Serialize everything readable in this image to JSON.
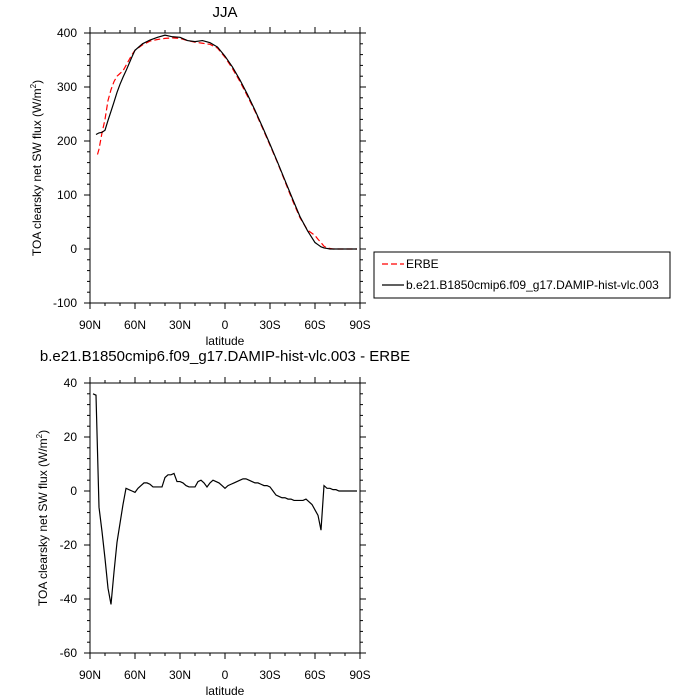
{
  "chart_data": [
    {
      "type": "line",
      "title": "JJA",
      "xlabel": "latitude",
      "ylabel": "TOA clearsky net SW flux (W/m",
      "ylabel_sup": "2",
      "ylabel_end": ")",
      "xlim": [
        90,
        -90
      ],
      "ylim": [
        -100,
        400
      ],
      "x_ticks": [
        90,
        60,
        30,
        0,
        -30,
        -60,
        -90
      ],
      "x_tick_labels": [
        "90N",
        "60N",
        "30N",
        "0",
        "30S",
        "60S",
        "90S"
      ],
      "y_ticks": [
        -100,
        0,
        100,
        200,
        300,
        400
      ],
      "y_tick_labels": [
        "-100",
        "0",
        "100",
        "200",
        "300",
        "400"
      ],
      "legend_position": "right",
      "series": [
        {
          "name": "ERBE",
          "color": "#ff0000",
          "dash": "dashed",
          "x": [
            85,
            84,
            82,
            80,
            78,
            76,
            74,
            72,
            70,
            68,
            66,
            64,
            62,
            60,
            55,
            50,
            45,
            40,
            35,
            30,
            25,
            20,
            15,
            10,
            5,
            0,
            -5,
            -10,
            -15,
            -20,
            -25,
            -30,
            -35,
            -40,
            -45,
            -50,
            -55,
            -60,
            -62,
            -64,
            -66,
            -68,
            -70,
            -72,
            -75,
            -80,
            -85,
            -88
          ],
          "y": [
            175,
            185,
            215,
            240,
            275,
            295,
            310,
            320,
            325,
            330,
            340,
            350,
            360,
            368,
            378,
            385,
            388,
            390,
            391,
            390,
            386,
            383,
            381,
            379,
            372,
            355,
            334,
            310,
            283,
            255,
            224,
            192,
            160,
            125,
            90,
            58,
            35,
            25,
            18,
            12,
            5,
            2,
            1,
            0,
            0,
            0,
            0,
            0
          ]
        },
        {
          "name": "b.e21.B1850cmip6.f09_g17.DAMIP-hist-vlc.003",
          "color": "#000000",
          "dash": "solid",
          "x": [
            86,
            84,
            82,
            80,
            78,
            76,
            74,
            72,
            70,
            68,
            66,
            64,
            62,
            60,
            55,
            50,
            45,
            40,
            35,
            30,
            25,
            20,
            15,
            10,
            5,
            0,
            -5,
            -10,
            -15,
            -20,
            -25,
            -30,
            -35,
            -40,
            -45,
            -50,
            -55,
            -60,
            -62,
            -64,
            -66,
            -68,
            -70,
            -72,
            -75,
            -80,
            -85,
            -88
          ],
          "y": [
            212,
            215,
            216,
            220,
            238,
            255,
            272,
            290,
            305,
            318,
            330,
            343,
            356,
            368,
            380,
            387,
            392,
            396,
            393,
            392,
            386,
            384,
            386,
            382,
            374,
            357,
            337,
            313,
            286,
            257,
            226,
            194,
            161,
            127,
            93,
            60,
            34,
            12,
            8,
            4,
            2,
            1,
            0,
            0,
            0,
            0,
            0,
            0
          ]
        }
      ]
    },
    {
      "type": "line",
      "title": "b.e21.B1850cmip6.f09_g17.DAMIP-hist-vlc.003 - ERBE",
      "xlabel": "latitude",
      "ylabel": "TOA clearsky net SW flux (W/m",
      "ylabel_sup": "2",
      "ylabel_end": ")",
      "xlim": [
        90,
        -90
      ],
      "ylim": [
        -60,
        40
      ],
      "x_ticks": [
        90,
        60,
        30,
        0,
        -30,
        -60,
        -90
      ],
      "x_tick_labels": [
        "90N",
        "60N",
        "30N",
        "0",
        "30S",
        "60S",
        "90S"
      ],
      "y_ticks": [
        -60,
        -40,
        -20,
        0,
        20,
        40
      ],
      "y_tick_labels": [
        "-60",
        "-40",
        "-20",
        "0",
        "20",
        "40"
      ],
      "series": [
        {
          "color": "#000000",
          "dash": "solid",
          "x": [
            88,
            86,
            84,
            82,
            80,
            78,
            76,
            74,
            72,
            70,
            68,
            66,
            64,
            62,
            60,
            58,
            56,
            54,
            52,
            50,
            48,
            46,
            44,
            42,
            40,
            38,
            36,
            34,
            32,
            30,
            28,
            26,
            24,
            22,
            20,
            18,
            16,
            14,
            12,
            10,
            8,
            6,
            4,
            2,
            0,
            -2,
            -4,
            -6,
            -8,
            -10,
            -12,
            -14,
            -16,
            -18,
            -20,
            -22,
            -24,
            -26,
            -28,
            -30,
            -32,
            -34,
            -36,
            -38,
            -40,
            -42,
            -44,
            -46,
            -48,
            -50,
            -52,
            -54,
            -56,
            -58,
            -60,
            -62,
            -64,
            -66,
            -68,
            -70,
            -72,
            -74,
            -76,
            -78,
            -80,
            -82,
            -84,
            -86,
            -88
          ],
          "y": [
            36,
            35.5,
            -6,
            -15,
            -25,
            -36,
            -42,
            -30,
            -19,
            -12,
            -5,
            1,
            0.5,
            0,
            -0.5,
            1,
            2,
            3,
            3,
            2.5,
            1.5,
            1.5,
            1.5,
            1.5,
            5,
            6,
            6,
            6.5,
            3.5,
            3.5,
            3,
            2,
            1.5,
            1.5,
            1.5,
            3.5,
            4,
            3,
            1.5,
            3,
            4,
            3.5,
            3,
            2,
            1,
            2,
            2.5,
            3,
            3.5,
            4,
            4.5,
            4.5,
            4,
            3.5,
            3,
            3,
            2.5,
            2,
            2,
            1.5,
            0,
            -1.5,
            -2,
            -2.5,
            -2.5,
            -3,
            -3,
            -3.5,
            -3.5,
            -3.5,
            -3.5,
            -3,
            -4,
            -5,
            -7,
            -9,
            -14.5,
            2,
            1,
            1,
            0.5,
            0.5,
            0,
            0,
            0,
            0,
            0,
            0,
            0
          ]
        }
      ]
    }
  ]
}
